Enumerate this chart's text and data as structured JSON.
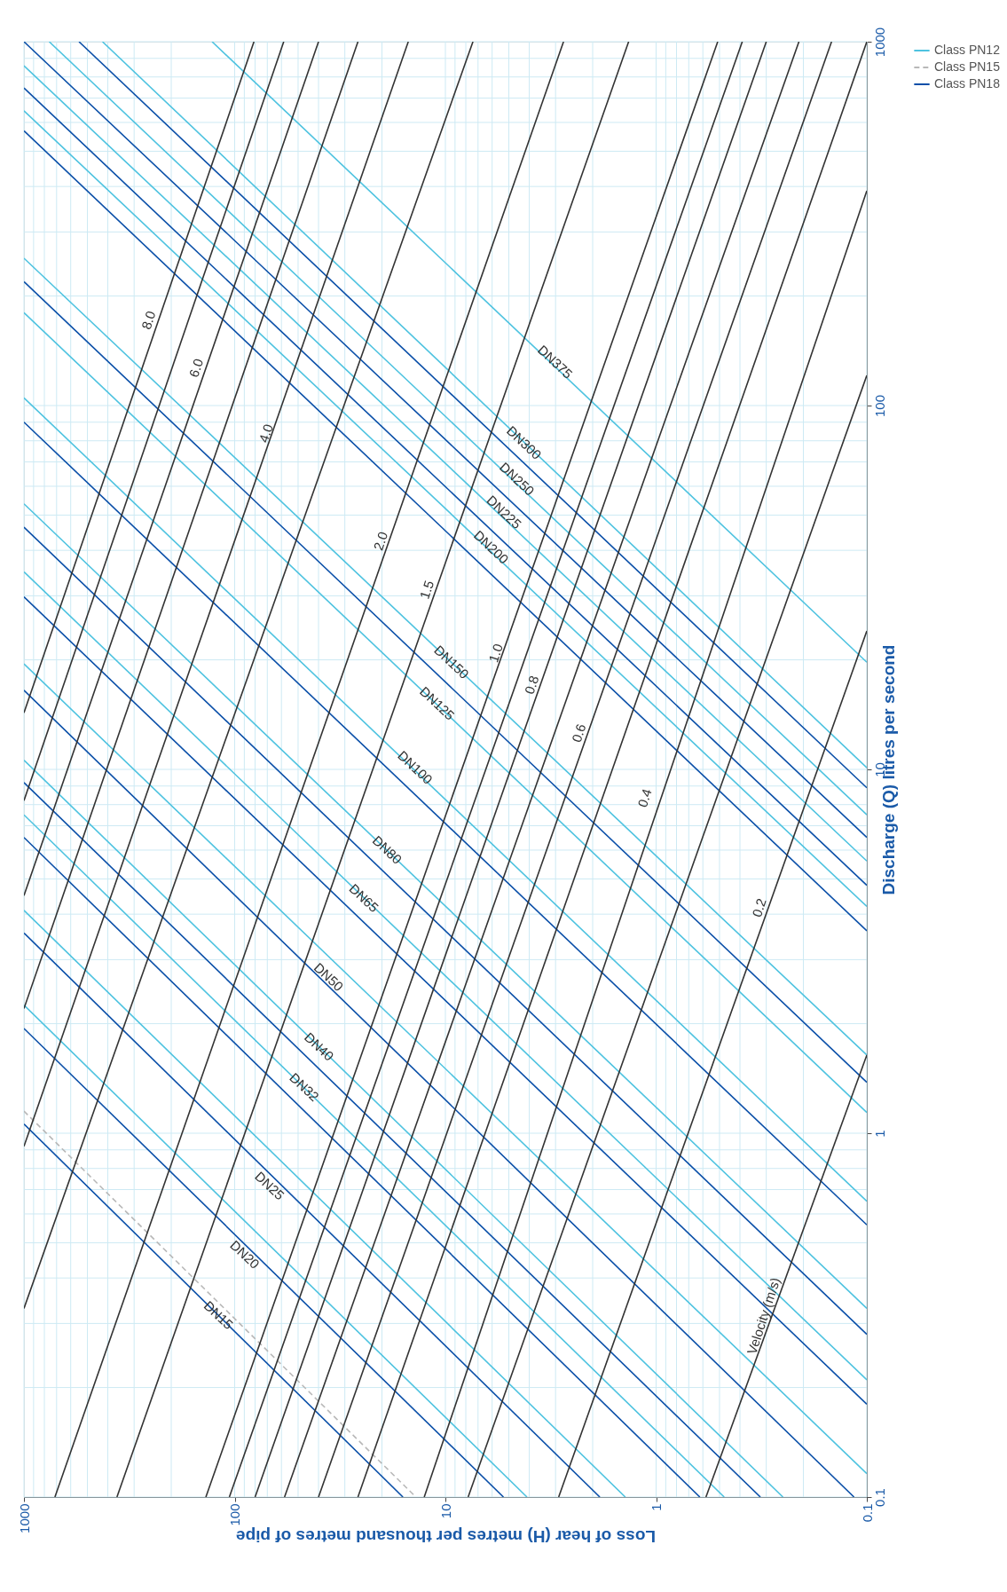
{
  "chart_data": {
    "type": "line",
    "xlabel": "Loss of hear (H) metres per thousand metres of pipe",
    "ylabel": "Discharge (Q) litres per second",
    "log": "xy",
    "xlim": [
      1000,
      0.1
    ],
    "ylim": [
      0.1,
      1000
    ],
    "xticks": [
      1000,
      100,
      10,
      1,
      0.1
    ],
    "yticks": [
      0.1,
      1,
      10,
      100,
      1000
    ],
    "grid": true,
    "legend": "top right",
    "annotations": [
      "8.0",
      "6.0",
      "4.0",
      "2.0",
      "1.5",
      "1.0",
      "0.8",
      "0.6",
      "0.4",
      "0.2",
      "Velocity (m/s)",
      "DN375",
      "DN300",
      "DN250",
      "DN225",
      "DN200",
      "DN150",
      "DN125",
      "DN100",
      "DN80",
      "DN65",
      "DN50",
      "DN40",
      "DN32",
      "DN25",
      "DN20",
      "DN15"
    ],
    "series": [
      {
        "name": "Class PN12",
        "color": "#4ec3e0",
        "x": [
          128,
          0.1
        ],
        "values": [
          1000,
          19.7
        ]
      },
      {
        "name": "Class PN15",
        "color": "#b8b8b8",
        "line_style": "dashed",
        "x": [
          1000,
          13.8
        ],
        "values": [
          1.15,
          0.1
        ]
      },
      {
        "name": "Class PN18",
        "color": "#0a4fa8",
        "x": [
          548,
          0.1
        ],
        "values": [
          1000,
          8.9
        ]
      },
      {
        "color": "#4ec3e0",
        "x": [
          424,
          0.1
        ],
        "values": [
          1000,
          10.1
        ]
      },
      {
        "color": "#4ec3e0",
        "x": [
          759,
          0.1
        ],
        "values": [
          1000,
          7.5
        ]
      },
      {
        "color": "#0a4fa8",
        "x": [
          1000,
          0.1
        ],
        "values": [
          1000,
          6.5
        ]
      },
      {
        "color": "#4ec3e0",
        "x": [
          1000,
          0.1
        ],
        "values": [
          859,
          5.6
        ]
      },
      {
        "color": "#0a4fa8",
        "x": [
          1000,
          0.1
        ],
        "values": [
          746,
          4.8
        ]
      },
      {
        "color": "#4ec3e0",
        "x": [
          1000,
          0.1
        ],
        "values": [
          646,
          4.2
        ]
      },
      {
        "color": "#0a4fa8",
        "x": [
          1000,
          0.1
        ],
        "values": [
          569,
          3.6
        ]
      },
      {
        "color": "#4ec3e0",
        "x": [
          1000,
          0.1
        ],
        "values": [
          254,
          1.64
        ]
      },
      {
        "color": "#0a4fa8",
        "x": [
          1000,
          0.1
        ],
        "values": [
          219,
          1.38
        ]
      },
      {
        "color": "#4ec3e0",
        "x": [
          1000,
          0.1
        ],
        "values": [
          180,
          1.14
        ]
      },
      {
        "color": "#4ec3e0",
        "x": [
          1000,
          0.1
        ],
        "values": [
          105,
          0.65
        ]
      },
      {
        "color": "#0a4fa8",
        "x": [
          1000,
          0.1
        ],
        "values": [
          90,
          0.56
        ]
      },
      {
        "color": "#4ec3e0",
        "x": [
          1000,
          0.1
        ],
        "values": [
          53.7,
          0.33
        ]
      },
      {
        "color": "#0a4fa8",
        "x": [
          1000,
          0.1
        ],
        "values": [
          46.3,
          0.28
        ]
      },
      {
        "color": "#4ec3e0",
        "x": [
          1000,
          0.1
        ],
        "values": [
          34.9,
          0.21
        ]
      },
      {
        "color": "#0a4fa8",
        "x": [
          1000,
          0.1
        ],
        "values": [
          29.8,
          0.18
        ]
      },
      {
        "color": "#4ec3e0",
        "x": [
          1000,
          0.1
        ],
        "values": [
          19.5,
          0.116
        ]
      },
      {
        "color": "#0a4fa8",
        "x": [
          1000,
          0.115
        ],
        "values": [
          16.5,
          0.1
        ]
      },
      {
        "color": "#4ec3e0",
        "x": [
          1000,
          0.25
        ],
        "values": [
          10.6,
          0.1
        ]
      },
      {
        "color": "#0a4fa8",
        "x": [
          1000,
          0.32
        ],
        "values": [
          9.2,
          0.1
        ]
      },
      {
        "color": "#4ec3e0",
        "x": [
          1000,
          0.475
        ],
        "values": [
          7.5,
          0.1
        ]
      },
      {
        "color": "#0a4fa8",
        "x": [
          1000,
          0.62
        ],
        "values": [
          6.5,
          0.1
        ]
      },
      {
        "color": "#4ec3e0",
        "x": [
          1000,
          1.4
        ],
        "values": [
          4.1,
          0.1
        ]
      },
      {
        "color": "#0a4fa8",
        "x": [
          1000,
          1.85
        ],
        "values": [
          3.55,
          0.1
        ]
      },
      {
        "color": "#4ec3e0",
        "x": [
          1000,
          4.1
        ],
        "values": [
          2.25,
          0.1
        ]
      },
      {
        "color": "#0a4fa8",
        "x": [
          1000,
          5.3
        ],
        "values": [
          1.94,
          0.1
        ]
      },
      {
        "color": "#0a4fa8",
        "x": [
          1000,
          15.9
        ],
        "values": [
          1.06,
          0.1
        ]
      },
      {
        "color": "#333333",
        "x": [
          81,
          1000
        ],
        "values": [
          1000,
          14.3
        ]
      },
      {
        "color": "#333333",
        "x": [
          58.5,
          1000
        ],
        "values": [
          1000,
          8.2
        ]
      },
      {
        "color": "#333333",
        "x": [
          40,
          1000
        ],
        "values": [
          1000,
          4.5
        ]
      },
      {
        "color": "#333333",
        "x": [
          26,
          1000
        ],
        "values": [
          1000,
          2.2
        ]
      },
      {
        "color": "#333333",
        "x": [
          15,
          1000
        ],
        "values": [
          1000,
          0.92
        ]
      },
      {
        "color": "#333333",
        "x": [
          7.4,
          1000
        ],
        "values": [
          1000,
          0.33
        ]
      },
      {
        "color": "#333333",
        "x": [
          2.75,
          713
        ],
        "values": [
          1000,
          0.1
        ]
      },
      {
        "color": "#333333",
        "x": [
          1.35,
          362
        ],
        "values": [
          1000,
          0.1
        ]
      },
      {
        "color": "#333333",
        "x": [
          0.51,
          137
        ],
        "values": [
          1000,
          0.1
        ]
      },
      {
        "color": "#333333",
        "x": [
          0.39,
          106
        ],
        "values": [
          1000,
          0.1
        ]
      },
      {
        "color": "#333333",
        "x": [
          0.3,
          80
        ],
        "values": [
          1000,
          0.1
        ]
      },
      {
        "color": "#333333",
        "x": [
          0.21,
          58
        ],
        "values": [
          1000,
          0.1
        ]
      },
      {
        "color": "#333333",
        "x": [
          0.147,
          40
        ],
        "values": [
          1000,
          0.1
        ]
      },
      {
        "color": "#333333",
        "x": [
          0.1,
          26
        ],
        "values": [
          1000,
          0.1
        ]
      },
      {
        "color": "#333333",
        "x": [
          0.1,
          12.6
        ],
        "values": [
          389,
          0.1
        ]
      },
      {
        "color": "#333333",
        "x": [
          0.1,
          7.8
        ],
        "values": [
          121,
          0.1
        ]
      },
      {
        "color": "#333333",
        "x": [
          0.1,
          2.9
        ],
        "values": [
          24,
          0.1
        ]
      },
      {
        "color": "#333333",
        "x": [
          0.1,
          0.58
        ],
        "values": [
          1.64,
          0.1
        ]
      }
    ]
  }
}
